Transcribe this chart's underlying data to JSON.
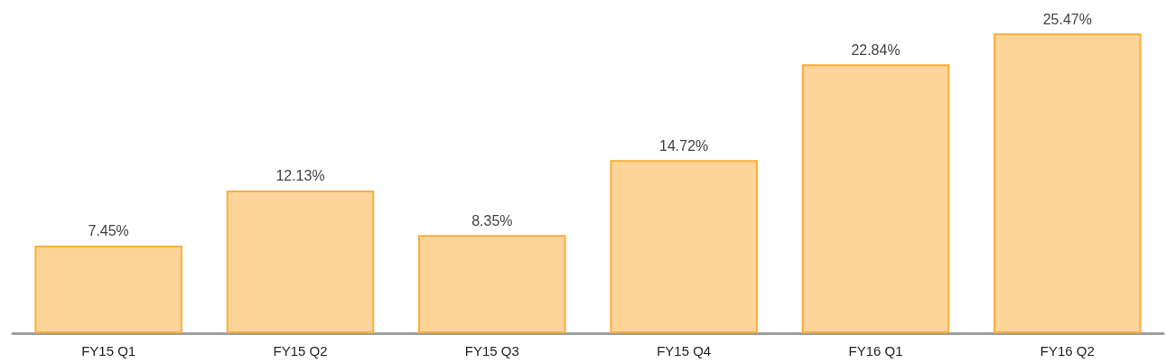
{
  "chart_data": {
    "type": "bar",
    "categories": [
      "FY15 Q1",
      "FY15 Q2",
      "FY15 Q3",
      "FY15 Q4",
      "FY16 Q1",
      "FY16 Q2"
    ],
    "values": [
      7.45,
      12.13,
      8.35,
      14.72,
      22.84,
      25.47
    ],
    "value_labels": [
      "7.45%",
      "12.13%",
      "8.35%",
      "14.72%",
      "22.84%",
      "25.47%"
    ],
    "color": "#fdd49a",
    "grid": false,
    "tick_labels": "x"
  }
}
